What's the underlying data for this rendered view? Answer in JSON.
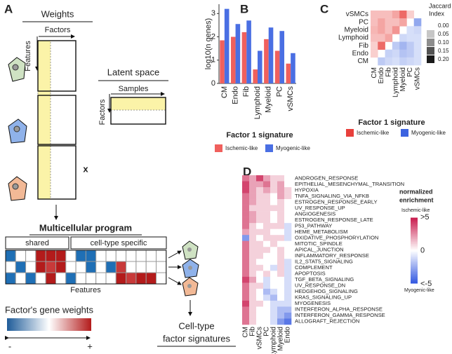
{
  "panel_labels": [
    "A",
    "B",
    "C",
    "D"
  ],
  "diagram": {
    "weights_title": "Weights",
    "weights_factors": "Factors",
    "weights_features": "Features",
    "latent_title": "Latent space",
    "latent_samples": "Samples",
    "latent_factors": "Factors",
    "multiply": "x",
    "program_title": "Multicellular program",
    "shared": "shared",
    "specific": "cell-type specific",
    "program_features": "Features",
    "gene_weights_title": "Factor's gene weights",
    "minus": "-",
    "plus": "+",
    "signatures_line1": "Cell-type",
    "signatures_line2": "factor signatures"
  },
  "chart_data": [
    {
      "type": "bar",
      "y_label": "log10(n genes)",
      "x_label": "Factor 1 signature",
      "categories": [
        "CM",
        "Endo",
        "Fib",
        "Lymphoid",
        "Myeloid",
        "PC",
        "vSMCs"
      ],
      "series": [
        {
          "name": "Ischemic-like",
          "color": "#f0605d",
          "values": [
            1.85,
            2.0,
            2.2,
            0.6,
            1.9,
            1.4,
            0.85
          ]
        },
        {
          "name": "Myogenic-like",
          "color": "#4a6fe3",
          "values": [
            3.2,
            2.55,
            2.7,
            1.4,
            2.4,
            2.25,
            1.3
          ]
        }
      ],
      "ylim": [
        0,
        3.4
      ],
      "yticks": [
        0,
        1,
        2,
        3
      ]
    },
    {
      "type": "heatmap",
      "x_label": "Factor 1 signature",
      "legend_title": [
        "Jaccard",
        "Index"
      ],
      "rows": [
        "vSMCs",
        "PC",
        "Myeloid",
        "Lymphoid",
        "Fib",
        "Endo",
        "CM"
      ],
      "columns": [
        "CM",
        "Endo",
        "Fib",
        "Lymphoid",
        "Myeloid",
        "PC",
        "vSMCs"
      ],
      "series": [
        {
          "name": "Ischemic-like",
          "color": "#e8403c",
          "values": [
            [
              0.05,
              0.05,
              0.05,
              0.08,
              0.15,
              0.03,
              null
            ],
            [
              0.05,
              0.08,
              0.05,
              0.05,
              0.08,
              null,
              null
            ],
            [
              0.06,
              0.08,
              0.05,
              0.1,
              null,
              null,
              null
            ],
            [
              0.05,
              0.05,
              0.08,
              null,
              null,
              null,
              null
            ],
            [
              0.03,
              0.15,
              null,
              null,
              null,
              null,
              null
            ],
            [
              0.03,
              null,
              null,
              null,
              null,
              null,
              null
            ],
            [
              null,
              null,
              null,
              null,
              null,
              null,
              null
            ]
          ]
        },
        {
          "name": "Myogenic-like",
          "color": "#3c63e0",
          "values": [
            [
              null,
              null,
              null,
              null,
              null,
              null,
              null
            ],
            [
              null,
              null,
              null,
              null,
              null,
              null,
              0.1
            ],
            [
              null,
              null,
              null,
              null,
              null,
              0.02,
              0.03
            ],
            [
              null,
              null,
              null,
              null,
              0.03,
              0.02,
              0.02
            ],
            [
              null,
              null,
              null,
              0.05,
              0.08,
              0.05,
              0.02
            ],
            [
              null,
              null,
              0.04,
              0.03,
              0.06,
              0.05,
              0.02
            ],
            [
              null,
              0.05,
              0.03,
              0.02,
              0.04,
              0.03,
              0.02
            ]
          ]
        }
      ],
      "clim": [
        0,
        0.2
      ],
      "legend_ticks": [
        {
          "value": 0,
          "label": "0.00"
        },
        {
          "value": 0.05,
          "label": "0.05"
        },
        {
          "value": 0.1,
          "label": "0.10"
        },
        {
          "value": 0.15,
          "label": "0.15"
        },
        {
          "value": 0.2,
          "label": "0.20"
        }
      ]
    },
    {
      "type": "heatmap",
      "legend_title": [
        "normalized",
        "enrichment"
      ],
      "legend_high": "Ischemic-like",
      "legend_low": "Myogenic-like",
      "rows": [
        "ANDROGEN_RESPONSE",
        "EPITHELIAL_MESENCHYMAL_TRANSITION",
        "HYPOXIA",
        "TNFA_SIGNALING_VIA_NFKB",
        "ESTROGEN_RESPONSE_EARLY",
        "UV_RESPONSE_UP",
        "ANGIOGENESIS",
        "ESTROGEN_RESPONSE_LATE",
        "P53_PATHWAY",
        "HEME_METABOLISM",
        "OXIDATIVE_PHOSPHORYLATION",
        "MITOTIC_SPINDLE",
        "APICAL_JUNCTION",
        "INFLAMMATORY_RESPONSE",
        "IL2_STAT5_SIGNALING",
        "COMPLEMENT",
        "APOPTOSIS",
        "TGF_BETA_SIGNALING",
        "UV_RESPONSE_DN",
        "HEDGEHOG_SIGNALING",
        "KRAS_SIGNALING_UP",
        "MYOGENESIS",
        "INTERFERON_ALPHA_RESPONSE",
        "INTERFERON_GAMMA_RESPONSE",
        "ALLOGRAFT_REJECTION"
      ],
      "columns": [
        "CM",
        "Fib",
        "vSMCs",
        "PC",
        "Lymphoid",
        "Myeloid",
        "Endo"
      ],
      "values": [
        [
          3,
          2,
          4,
          2,
          1,
          1,
          0
        ],
        [
          4,
          2,
          2,
          3,
          1,
          2,
          0
        ],
        [
          4,
          2,
          1,
          2,
          1,
          2,
          1
        ],
        [
          3,
          2,
          1,
          1,
          0,
          2,
          1
        ],
        [
          3,
          2,
          1,
          1,
          0,
          1,
          0
        ],
        [
          3,
          1,
          1,
          1,
          1,
          1,
          0
        ],
        [
          3,
          2,
          1,
          1,
          0,
          1,
          0
        ],
        [
          3,
          2,
          1,
          1,
          0,
          1,
          0
        ],
        [
          3,
          1,
          0,
          1,
          1,
          1,
          -1
        ],
        [
          2,
          1,
          1,
          1,
          0,
          0,
          -1
        ],
        [
          -3,
          1,
          0,
          1,
          1,
          1,
          -1
        ],
        [
          3,
          1,
          1,
          0,
          1,
          0,
          0
        ],
        [
          3,
          1,
          1,
          1,
          0,
          1,
          0
        ],
        [
          3,
          1,
          1,
          0,
          0,
          1,
          0
        ],
        [
          3,
          1,
          0,
          0,
          0,
          1,
          -1
        ],
        [
          3,
          1,
          1,
          0,
          -1,
          1,
          -1
        ],
        [
          3,
          1,
          0,
          1,
          0,
          1,
          -1
        ],
        [
          4,
          2,
          0,
          -1,
          0,
          0,
          -1
        ],
        [
          3,
          1,
          1,
          -1,
          0,
          0,
          -1
        ],
        [
          3,
          1,
          0,
          -2,
          -1,
          0,
          -1
        ],
        [
          3,
          1,
          0,
          -1,
          -2,
          0,
          -1
        ],
        [
          4,
          1,
          1,
          0,
          -1,
          -1,
          -1
        ],
        [
          3,
          1,
          0,
          0,
          -1,
          -2,
          -2
        ],
        [
          3,
          1,
          0,
          0,
          -1,
          -2,
          -3
        ],
        [
          3,
          1,
          0,
          0,
          -1,
          -3,
          -4
        ]
      ],
      "clim": [
        -5,
        5
      ],
      "legend_ticks": [
        {
          "value": 5,
          "label": ">5"
        },
        0,
        {
          "value": -5,
          "label": "<-5"
        }
      ]
    }
  ]
}
